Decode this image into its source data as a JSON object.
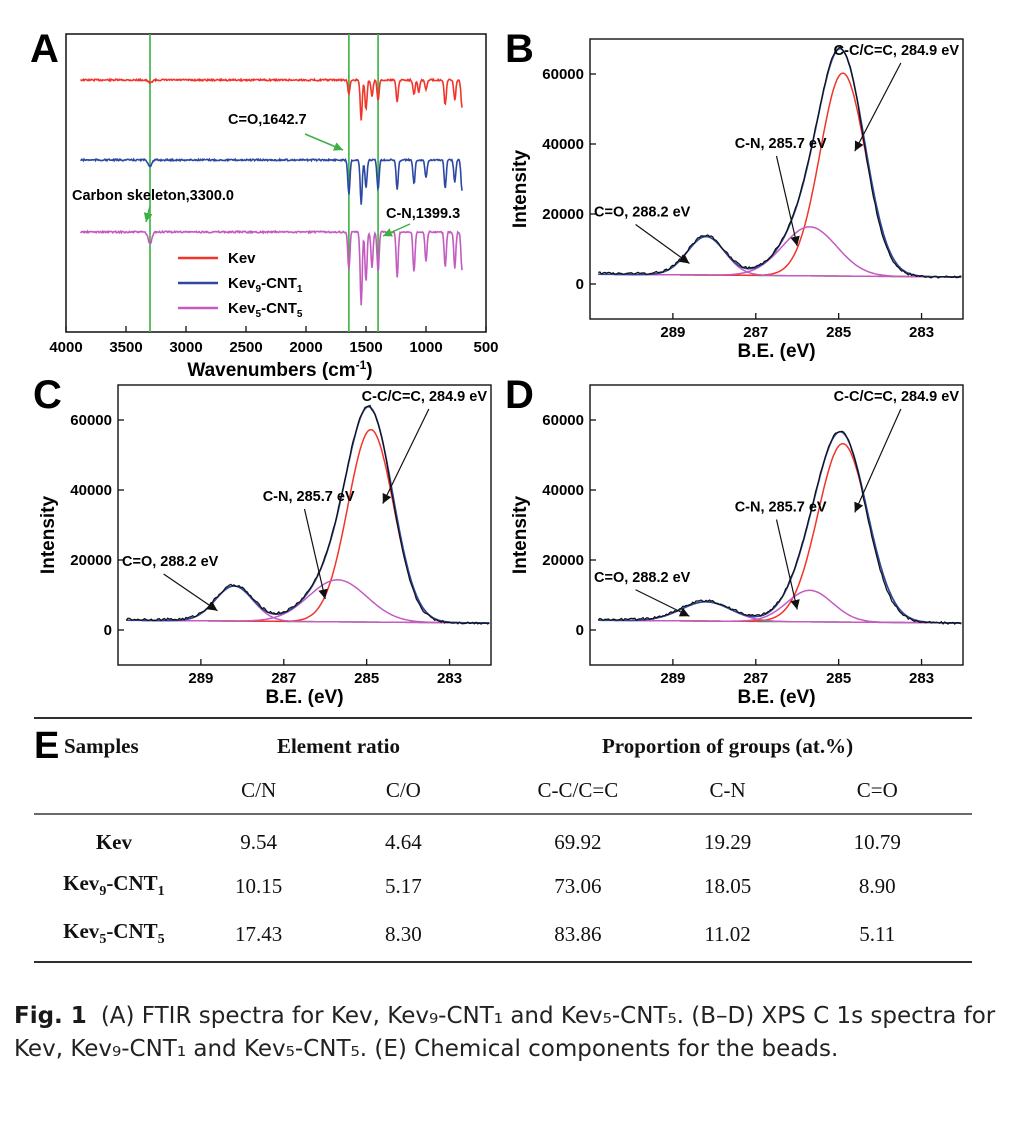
{
  "chart_data": [
    {
      "panel": "A",
      "type": "line",
      "xlabel": "Wavenumbers (cm-1)",
      "xlim": [
        4000,
        500
      ],
      "x_ticks": [
        4000,
        3500,
        3000,
        2500,
        2000,
        1500,
        1000,
        500
      ],
      "reference_lines_x": [
        3300,
        1642.7,
        1399.3
      ],
      "series": [
        {
          "name": "Kev",
          "color": "#f2342a",
          "peaks": [
            [
              3300,
              3
            ],
            [
              1642.7,
              14
            ],
            [
              1540,
              40
            ],
            [
              1500,
              30
            ],
            [
              1450,
              16
            ],
            [
              1399.3,
              20
            ],
            [
              1240,
              22
            ],
            [
              1100,
              14
            ],
            [
              1060,
              12
            ],
            [
              1000,
              10
            ],
            [
              840,
              25
            ],
            [
              760,
              20
            ],
            [
              700,
              28
            ]
          ]
        },
        {
          "name": "Kev9-CNT1",
          "name_sub": [
            "9",
            "1"
          ],
          "color": "#2b49a3",
          "peaks": [
            [
              3300,
              6
            ],
            [
              1642.7,
              34
            ],
            [
              1540,
              44
            ],
            [
              1500,
              28
            ],
            [
              1399.3,
              30
            ],
            [
              1240,
              30
            ],
            [
              1100,
              24
            ],
            [
              1000,
              18
            ],
            [
              840,
              28
            ],
            [
              760,
              22
            ],
            [
              700,
              30
            ]
          ]
        },
        {
          "name": "Kev5-CNT5",
          "name_sub": [
            "5",
            "5"
          ],
          "color": "#c45bc0",
          "peaks": [
            [
              3300,
              12
            ],
            [
              1642.7,
              38
            ],
            [
              1540,
              74
            ],
            [
              1500,
              50
            ],
            [
              1450,
              36
            ],
            [
              1399.3,
              40
            ],
            [
              1240,
              46
            ],
            [
              1100,
              40
            ],
            [
              1000,
              30
            ],
            [
              840,
              35
            ],
            [
              760,
              36
            ],
            [
              700,
              38
            ]
          ]
        }
      ],
      "annotations": [
        "C=O,1642.7",
        "Carbon skeleton,3300.0",
        "C-N,1399.3"
      ]
    },
    {
      "panel": "B",
      "type": "line",
      "xlabel": "B.E. (eV)",
      "ylabel": "Intensity",
      "xlim": [
        291,
        282
      ],
      "ylim": [
        -10000,
        70000
      ],
      "x_ticks": [
        289,
        287,
        285,
        283
      ],
      "y_ticks": [
        0,
        20000,
        40000,
        60000
      ],
      "components": [
        {
          "name": "C-C/C=C",
          "center": 284.9,
          "height": 58000,
          "sigma": 0.55
        },
        {
          "name": "C-N",
          "center": 285.7,
          "height": 14000,
          "sigma": 0.65
        },
        {
          "name": "C=O",
          "center": 288.2,
          "height": 11000,
          "sigma": 0.45
        }
      ],
      "baseline": 2000,
      "annotations": [
        "C-C/C=C, 284.9 eV",
        "C-N, 285.7 eV",
        "C=O, 288.2 eV"
      ]
    },
    {
      "panel": "C",
      "type": "line",
      "xlabel": "B.E. (eV)",
      "ylabel": "Intensity",
      "xlim": [
        291,
        282
      ],
      "ylim": [
        -10000,
        70000
      ],
      "x_ticks": [
        289,
        287,
        285,
        283
      ],
      "y_ticks": [
        0,
        20000,
        40000,
        60000
      ],
      "components": [
        {
          "name": "C-C/C=C",
          "center": 284.9,
          "height": 55000,
          "sigma": 0.55
        },
        {
          "name": "C-N",
          "center": 285.7,
          "height": 12000,
          "sigma": 0.7
        },
        {
          "name": "C=O",
          "center": 288.2,
          "height": 10000,
          "sigma": 0.45
        }
      ],
      "baseline": 2000,
      "annotations": [
        "C-C/C=C, 284.9 eV",
        "C-N, 285.7 eV",
        "C=O, 288.2 eV"
      ]
    },
    {
      "panel": "D",
      "type": "line",
      "xlabel": "B.E. (eV)",
      "ylabel": "Intensity",
      "xlim": [
        291,
        282
      ],
      "ylim": [
        -10000,
        70000
      ],
      "x_ticks": [
        289,
        287,
        285,
        283
      ],
      "y_ticks": [
        0,
        20000,
        40000,
        60000
      ],
      "components": [
        {
          "name": "C-C/C=C",
          "center": 284.9,
          "height": 51000,
          "sigma": 0.6
        },
        {
          "name": "C-N",
          "center": 285.7,
          "height": 9000,
          "sigma": 0.55
        },
        {
          "name": "C=O",
          "center": 288.2,
          "height": 5500,
          "sigma": 0.6
        }
      ],
      "baseline": 2000,
      "annotations": [
        "C-C/C=C, 284.9 eV",
        "C-N, 285.7 eV",
        "C=O, 288.2 eV"
      ]
    },
    {
      "panel": "E",
      "type": "table",
      "header_groups": [
        "Samples",
        "Element ratio",
        "Proportion of groups (at.%)"
      ],
      "columns": [
        "C/N",
        "C/O",
        "C-C/C=C",
        "C-N",
        "C=O"
      ],
      "rows": [
        {
          "sample": "Kev",
          "sub": [
            "",
            ""
          ],
          "values": [
            "9.54",
            "4.64",
            "69.92",
            "19.29",
            "10.79"
          ]
        },
        {
          "sample": "Kev-CNT",
          "sub": [
            "9",
            "1"
          ],
          "values": [
            "10.15",
            "5.17",
            "73.06",
            "18.05",
            "8.90"
          ]
        },
        {
          "sample": "Kev-CNT",
          "sub": [
            "5",
            "5"
          ],
          "values": [
            "17.43",
            "8.30",
            "83.86",
            "11.02",
            "5.11"
          ]
        }
      ]
    }
  ],
  "panel_labels": [
    "A",
    "B",
    "C",
    "D",
    "E"
  ],
  "colors": {
    "kev": "#f2342a",
    "kev9": "#2b49a3",
    "kev5": "#c45bc0",
    "fit_cc": "#f2342a",
    "fit_cn": "#c45bc0",
    "envelope": "#2b49a3",
    "raw": "#111111",
    "baseline": "#3a9a3a",
    "marker_line": "#3cb043"
  },
  "caption": {
    "label": "Fig. 1",
    "text": "(A) FTIR spectra for Kev, Kev₉-CNT₁ and Kev₅-CNT₅. (B–D) XPS C 1s spectra for Kev, Kev₉-CNT₁ and Kev₅-CNT₅. (E) Chemical components for the beads."
  }
}
